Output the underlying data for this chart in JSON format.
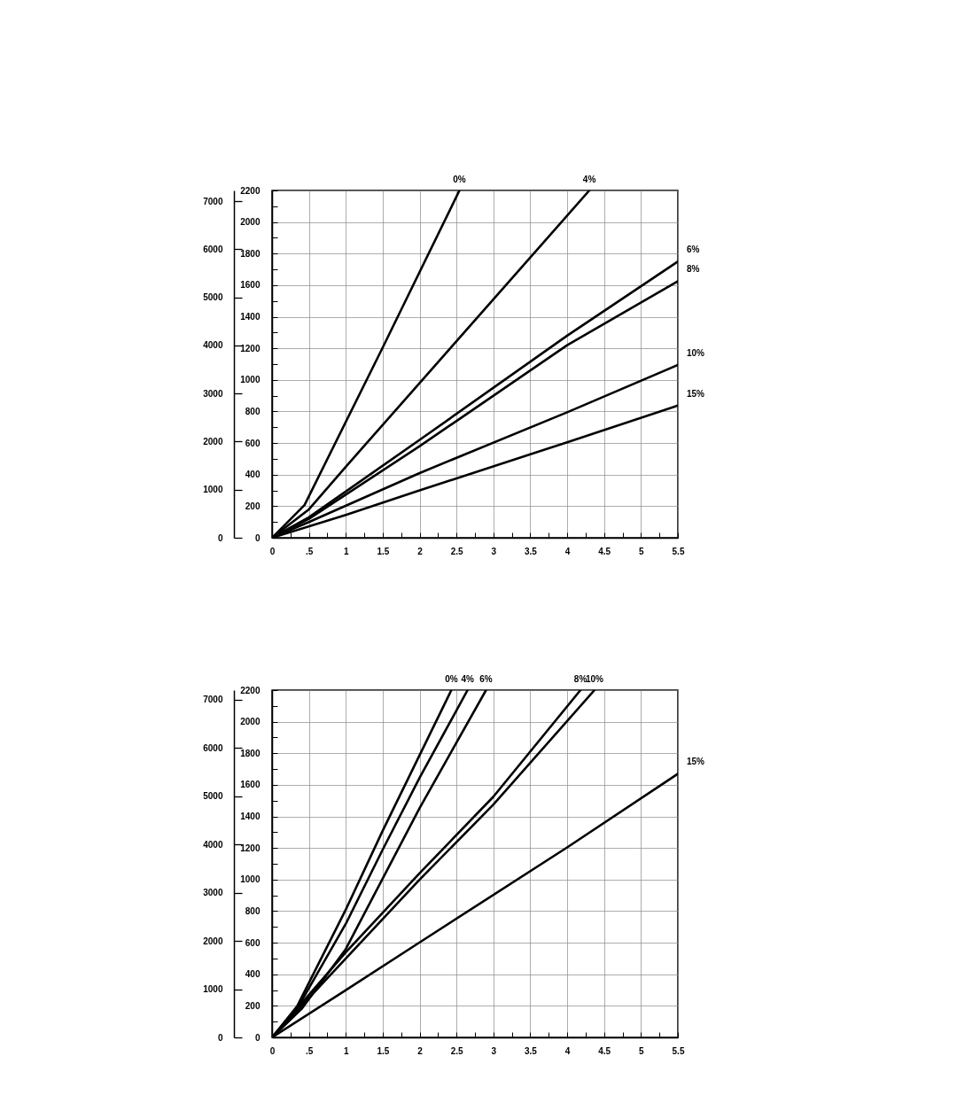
{
  "chart_data": [
    {
      "type": "line",
      "legend": false,
      "grid": true,
      "line_style": "solid",
      "marker": "none",
      "xlim": [
        0,
        5.5
      ],
      "xticks": [
        0,
        {
          "value": 0.25,
          "label": null
        },
        {
          "value": 0.5,
          "label": ".5"
        },
        {
          "value": 0.75,
          "label": null
        },
        1,
        {
          "value": 1.25,
          "label": null
        },
        1.5,
        {
          "value": 1.75,
          "label": null
        },
        2,
        {
          "value": 2.25,
          "label": null
        },
        2.5,
        {
          "value": 2.75,
          "label": null
        },
        3,
        {
          "value": 3.25,
          "label": null
        },
        3.5,
        {
          "value": 3.75,
          "label": null
        },
        4,
        {
          "value": 4.25,
          "label": null
        },
        4.5,
        {
          "value": 4.75,
          "label": null
        },
        5,
        {
          "value": 5.25,
          "label": null
        },
        5.5
      ],
      "ylim": [
        0,
        2200
      ],
      "yticks": [
        0,
        {
          "value": 100,
          "label": null
        },
        200,
        {
          "value": 300,
          "label": null
        },
        400,
        {
          "value": 500,
          "label": null
        },
        600,
        {
          "value": 700,
          "label": null
        },
        800,
        {
          "value": 900,
          "label": null
        },
        1000,
        {
          "value": 1100,
          "label": null
        },
        1200,
        {
          "value": 1300,
          "label": null
        },
        1400,
        {
          "value": 1500,
          "label": null
        },
        1600,
        {
          "value": 1700,
          "label": null
        },
        1800,
        {
          "value": 1900,
          "label": null
        },
        2000,
        {
          "value": 2100,
          "label": null
        },
        2200
      ],
      "y2lim": [
        0,
        7225
      ],
      "y2ticks": [
        0,
        1000,
        2000,
        3000,
        4000,
        5000,
        6000,
        7000
      ],
      "series": [
        {
          "name": "0%",
          "color": "#000000",
          "x": [
            0,
            0.44,
            1.5,
            2.54
          ],
          "values": [
            0,
            207,
            1205,
            2200
          ]
        },
        {
          "name": "4%",
          "color": "#000000",
          "x": [
            0,
            0.5,
            1,
            2,
            4.3
          ],
          "values": [
            0,
            180,
            450,
            980,
            2200
          ]
        },
        {
          "name": "6%",
          "color": "#000000",
          "x": [
            0,
            0.5,
            2,
            4,
            5.5
          ],
          "values": [
            0,
            130,
            620,
            1280,
            1750
          ]
        },
        {
          "name": "8%",
          "color": "#000000",
          "x": [
            0,
            0.5,
            2,
            4,
            5.5
          ],
          "values": [
            0,
            120,
            580,
            1220,
            1625
          ]
        },
        {
          "name": "10%",
          "color": "#000000",
          "x": [
            0,
            0.5,
            2,
            4,
            5.5
          ],
          "values": [
            0,
            100,
            410,
            795,
            1095
          ]
        },
        {
          "name": "15%",
          "color": "#000000",
          "x": [
            0,
            1,
            2,
            4,
            5.5
          ],
          "values": [
            0,
            145,
            300,
            605,
            838
          ]
        }
      ]
    },
    {
      "type": "line",
      "legend": false,
      "grid": true,
      "line_style": "solid",
      "marker": "none",
      "xlim": [
        0,
        5.5
      ],
      "xticks": [
        0,
        {
          "value": 0.25,
          "label": null
        },
        {
          "value": 0.5,
          "label": ".5"
        },
        {
          "value": 0.75,
          "label": null
        },
        1,
        {
          "value": 1.25,
          "label": null
        },
        1.5,
        {
          "value": 1.75,
          "label": null
        },
        2,
        {
          "value": 2.25,
          "label": null
        },
        2.5,
        {
          "value": 2.75,
          "label": null
        },
        3,
        {
          "value": 3.25,
          "label": null
        },
        3.5,
        {
          "value": 3.75,
          "label": null
        },
        4,
        {
          "value": 4.25,
          "label": null
        },
        4.5,
        {
          "value": 4.75,
          "label": null
        },
        5,
        {
          "value": 5.25,
          "label": null
        },
        5.5
      ],
      "ylim": [
        0,
        2200
      ],
      "yticks": [
        0,
        {
          "value": 100,
          "label": null
        },
        200,
        {
          "value": 300,
          "label": null
        },
        400,
        {
          "value": 500,
          "label": null
        },
        600,
        {
          "value": 700,
          "label": null
        },
        800,
        {
          "value": 900,
          "label": null
        },
        1000,
        {
          "value": 1100,
          "label": null
        },
        1200,
        {
          "value": 1300,
          "label": null
        },
        1400,
        {
          "value": 1500,
          "label": null
        },
        1600,
        {
          "value": 1700,
          "label": null
        },
        1800,
        {
          "value": 1900,
          "label": null
        },
        2000,
        {
          "value": 2100,
          "label": null
        },
        2200
      ],
      "y2lim": [
        0,
        7200
      ],
      "y2ticks": [
        0,
        1000,
        2000,
        3000,
        4000,
        5000,
        6000,
        7000
      ],
      "series": [
        {
          "name": "0%",
          "color": "#000000",
          "x": [
            0,
            0.34,
            1,
            1.5,
            2.43
          ],
          "values": [
            0,
            197,
            810,
            1310,
            2200
          ]
        },
        {
          "name": "4%",
          "color": "#000000",
          "x": [
            0,
            0.35,
            1,
            1.5,
            2,
            2.65
          ],
          "values": [
            0,
            190,
            720,
            1190,
            1645,
            2200
          ]
        },
        {
          "name": "6%",
          "color": "#000000",
          "x": [
            0,
            0.4,
            1,
            1.5,
            2,
            2.9
          ],
          "values": [
            0,
            180,
            560,
            1007,
            1453,
            2200
          ]
        },
        {
          "name": "8%",
          "color": "#000000",
          "x": [
            0,
            1,
            2,
            3,
            4.18
          ],
          "values": [
            0,
            540,
            1040,
            1525,
            2200
          ]
        },
        {
          "name": "10%",
          "color": "#000000",
          "x": [
            0,
            1,
            2,
            3,
            4.37
          ],
          "values": [
            0,
            500,
            1000,
            1475,
            2200
          ]
        },
        {
          "name": "15%",
          "color": "#000000",
          "x": [
            0,
            1,
            2,
            4,
            5.5
          ],
          "values": [
            0,
            300,
            602,
            1204,
            1670
          ]
        }
      ]
    }
  ]
}
